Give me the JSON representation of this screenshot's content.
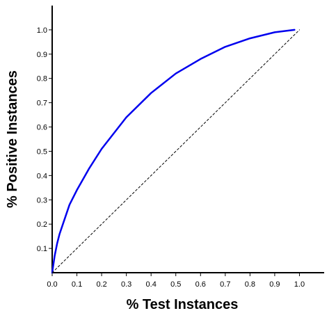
{
  "chart_data": {
    "type": "line",
    "title": "",
    "xlabel": "% Test Instances",
    "ylabel": "% Positive Instances",
    "xlim": [
      0,
      1.1
    ],
    "ylim": [
      0,
      1.1
    ],
    "grid": false,
    "legend": "none",
    "x_ticks": [
      0.0,
      0.1,
      0.2,
      0.3,
      0.4,
      0.5,
      0.6,
      0.7,
      0.8,
      0.9,
      1.0
    ],
    "x_tick_labels": [
      "0.0",
      "0.1",
      "0.2",
      "0.3",
      "0.4",
      "0.5",
      "0.6",
      "0.7",
      "0.8",
      "0.9",
      "1.0"
    ],
    "y_ticks": [
      0.1,
      0.2,
      0.3,
      0.4,
      0.5,
      0.6,
      0.7,
      0.8,
      0.9,
      1.0
    ],
    "y_tick_labels": [
      "0.1",
      "0.2",
      "0.3",
      "0.4",
      "0.5",
      "0.6",
      "0.7",
      "0.8",
      "0.9",
      "1.0"
    ],
    "series": [
      {
        "color": "#0000ee",
        "style": "solid",
        "x": [
          0.0,
          0.01,
          0.02,
          0.03,
          0.05,
          0.07,
          0.1,
          0.15,
          0.2,
          0.3,
          0.4,
          0.5,
          0.6,
          0.7,
          0.8,
          0.9,
          0.98
        ],
        "y": [
          0.0,
          0.07,
          0.12,
          0.16,
          0.22,
          0.28,
          0.34,
          0.43,
          0.51,
          0.64,
          0.74,
          0.82,
          0.88,
          0.93,
          0.965,
          0.99,
          1.0
        ]
      },
      {
        "color": "#000000",
        "style": "dashed",
        "x": [
          0.0,
          1.0
        ],
        "y": [
          0.0,
          1.0
        ]
      }
    ]
  }
}
